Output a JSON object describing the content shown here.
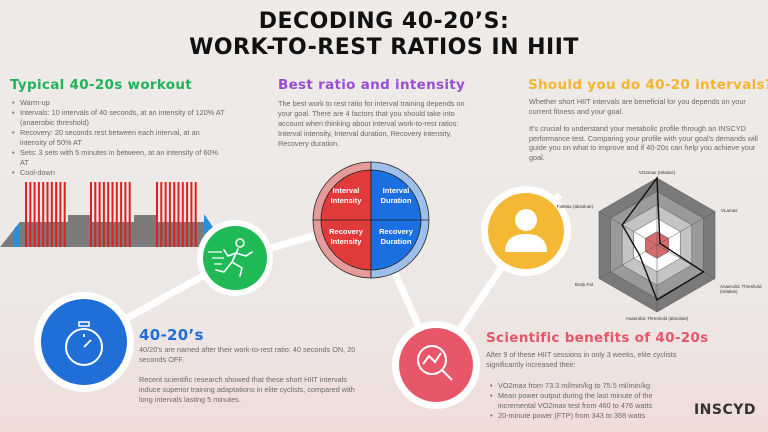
{
  "title": {
    "line1": "DECODING 40-20’S:",
    "line2": "WORK-TO-REST RATIOS IN HIIT"
  },
  "workout": {
    "heading": "Typical 40-20s workout",
    "items": [
      "Warm-up",
      "Intervals: 10 intervals of 40 seconds, at an intensity of 120% AT (anaerobic threshold)",
      "Recovery: 20 seconds rest between each interval, at an intensity of 50% AT",
      "Sets: 3 sets with 5 minutes in between, at an intensity of 60% AT",
      "Cool-down"
    ],
    "color": "#22b35a"
  },
  "ratio": {
    "heading": "Best ratio and intensity",
    "body": "The best work to rest ratio for interval training depends on your goal. There are 4 factors that you should take into account when thinking about interval work-to-rest ratios: Interval intensity, Interval duration, Recovery intensity, Recovery duration.",
    "color": "#9a4fd4",
    "quadrants": [
      "Interval Intensity",
      "Interval Duration",
      "Recovery Intensity",
      "Recovery Duration"
    ]
  },
  "should": {
    "heading": "Should you do 40-20 intervals?",
    "p1": "Whether short HIIT intervals are beneficial for you depends on your current fitness and your goal.",
    "p2": "It’s crucial to understand your metabolic profile through an INSCYD performance test. Comparing your profile with your goal's demands will guide you on what to improve and if 40-20s can help you achieve your goal.",
    "color": "#f3b52f"
  },
  "radar": {
    "axes": [
      "VO2max (relative)",
      "VLamax",
      "Anaerobic Threshold (relative)",
      "Anaerobic Threshold (absolute)",
      "Body Fat",
      "FatMax (absolute)"
    ],
    "values": [
      1.0,
      0.05,
      0.8,
      0.82,
      0.3,
      0.6
    ]
  },
  "ratio4020": {
    "heading": "40-20’s",
    "p1": "40/20's are named after their work-to-rest ratio: 40 seconds ON, 20 seconds OFF.",
    "p2": "Recent scientific research showed that these short HIIT intervals induce superior training adaptations in elite cyclists, compared with long intervals lasting 5 minutes.",
    "color": "#1f6fd6"
  },
  "benefits": {
    "heading": "Scientific benefits of 40-20s",
    "intro": "After 9 of these HIIT sessions in only 3 weeks, elite cyclists significantly increased their:",
    "items": [
      "VO2max from 73.3 ml/min/kg to 75.5 ml/min/kg",
      "Mean power output during the last minute of the incremental VO2max test from 460 to 476 watts",
      "20-minute power (FTP) from 343 to 358 watts"
    ],
    "color": "#e5566b"
  },
  "logo": "INSCYD"
}
